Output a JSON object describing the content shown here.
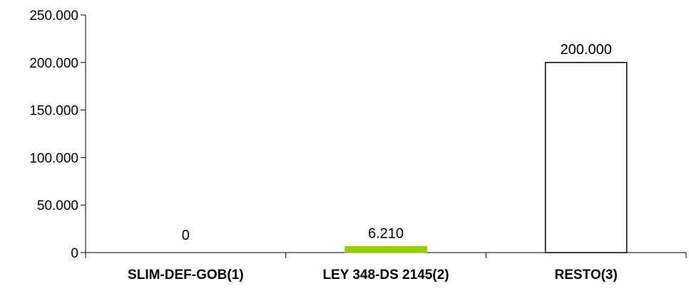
{
  "chart_data": {
    "type": "bar",
    "title": "",
    "xlabel": "",
    "ylabel": "",
    "categories": [
      "SLIM-DEF-GOB(1)",
      "LEY 348-DS 2145(2)",
      "RESTO(3)"
    ],
    "values": [
      0,
      6210,
      200000
    ],
    "value_labels": [
      "0",
      "6.210",
      "200.000"
    ],
    "ylim": [
      0,
      250000
    ],
    "y_ticks": [
      0,
      50000,
      100000,
      150000,
      200000,
      250000
    ],
    "y_tick_labels": [
      "0",
      "50.000",
      "100.000",
      "150.000",
      "200.000",
      "250.000"
    ],
    "grid": false,
    "legend": "none",
    "bar_fills": [
      "#ffffff",
      "#99cc00",
      "#ffffff"
    ],
    "bar_strokes": [
      "#000000",
      "#99cc00",
      "#000000"
    ]
  }
}
